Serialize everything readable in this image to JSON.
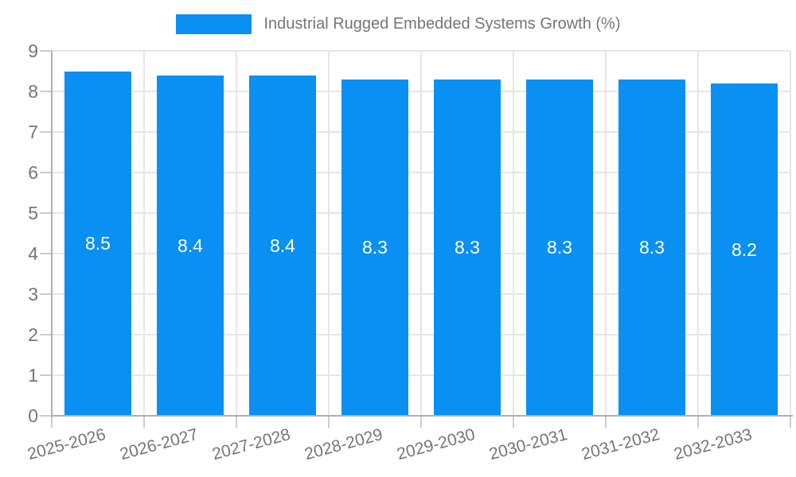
{
  "legend": {
    "label": "Industrial Rugged Embedded Systems Growth (%)"
  },
  "chart_data": {
    "type": "bar",
    "title": "Industrial Rugged Embedded Systems Growth (%)",
    "categories": [
      "2025-2026",
      "2026-2027",
      "2027-2028",
      "2028-2029",
      "2029-2030",
      "2030-2031",
      "2031-2032",
      "2032-2033"
    ],
    "series": [
      {
        "name": "Industrial Rugged Embedded Systems Growth (%)",
        "values": [
          8.5,
          8.4,
          8.4,
          8.3,
          8.3,
          8.3,
          8.3,
          8.2
        ]
      }
    ],
    "bar_labels": [
      "8.5",
      "8.4",
      "8.4",
      "8.3",
      "8.3",
      "8.3",
      "8.3",
      "8.2"
    ],
    "xlabel": "",
    "ylabel": "",
    "ylim": [
      0,
      9
    ],
    "yticks": [
      0,
      1,
      2,
      3,
      4,
      5,
      6,
      7,
      8,
      9
    ],
    "grid": true,
    "legend_position": "top-center",
    "x_label_rotation_deg": -15,
    "colors": {
      "bar": "#0a8ff2",
      "bar_label_text": "#ffffff",
      "axis_text": "#757575",
      "gridline": "#e6e6e6",
      "axis_line": "#b0b0b0",
      "tick_mark": "#cccccc",
      "background": "#ffffff"
    }
  }
}
